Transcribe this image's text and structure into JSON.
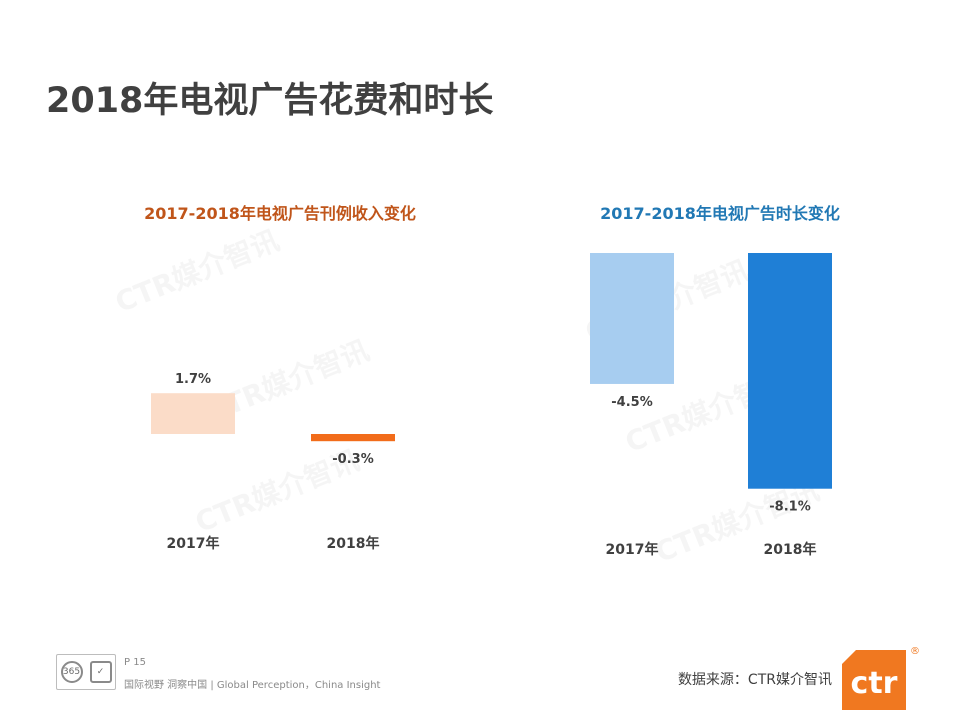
{
  "page": {
    "title": "2018年电视广告花费和时长",
    "page_number": "P 15",
    "slogan": "国际视野  洞察中国 |  Global Perception，China Insight",
    "source": "数据来源：CTR媒介智讯",
    "logo_text": "ctr",
    "logo_mark": "®",
    "watermark": "CTR媒介智讯",
    "cert_text": "365"
  },
  "colors": {
    "left_title": "#c0551a",
    "right_title": "#2178b4",
    "left_2017": "#fbdcc8",
    "left_2018": "#f26c1a",
    "right_2017": "#a7cdf0",
    "right_2018": "#1f7fd6",
    "logo": "#f07820"
  },
  "chart_data": [
    {
      "type": "bar",
      "title": "2017-2018年电视广告刊例收入变化",
      "categories": [
        "2017年",
        "2018年"
      ],
      "values": [
        1.7,
        -0.3
      ],
      "labels": [
        "1.7%",
        "-0.3%"
      ],
      "ylim": [
        -2,
        6
      ],
      "xlabel": "",
      "ylabel": ""
    },
    {
      "type": "bar",
      "title": "2017-2018年电视广告时长变化",
      "categories": [
        "2017年",
        "2018年"
      ],
      "values": [
        -4.5,
        -8.1
      ],
      "labels": [
        "-4.5%",
        "-8.1%"
      ],
      "ylim": [
        -10,
        0
      ],
      "xlabel": "",
      "ylabel": ""
    }
  ]
}
